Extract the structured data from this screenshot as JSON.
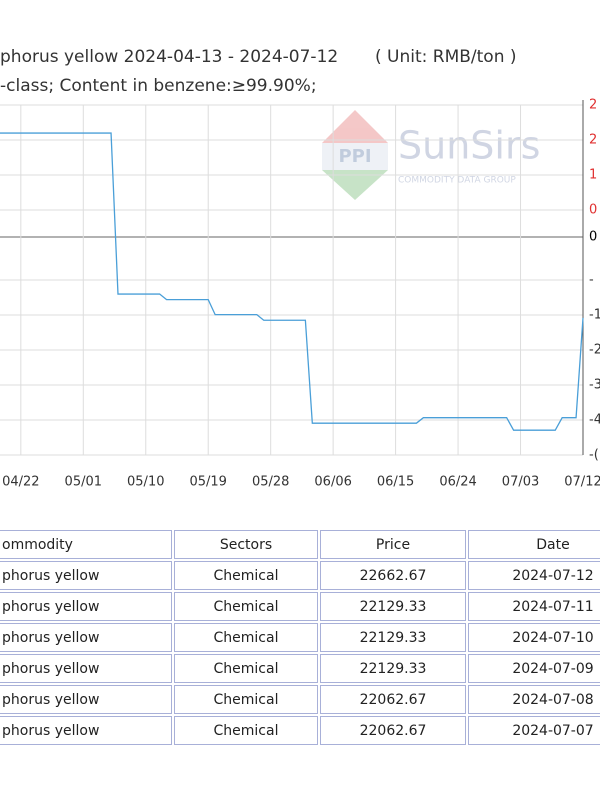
{
  "chart_data": {
    "type": "line",
    "title": "phorus yellow 2024-04-13 - 2024-07-12",
    "unit": "( Unit: RMB/ton )",
    "subtitle": "-class; Content in benzene:≥99.90%;",
    "watermark": {
      "brand": "SunSirs",
      "tagline": "COMMODITY DATA GROUP",
      "logo": "PPI"
    },
    "x": [
      "2024-04-19",
      "2024-05-05",
      "2024-05-06",
      "2024-05-12",
      "2024-05-13",
      "2024-05-19",
      "2024-05-20",
      "2024-05-26",
      "2024-05-27",
      "2024-06-02",
      "2024-06-03",
      "2024-06-18",
      "2024-06-19",
      "2024-07-01",
      "2024-07-02",
      "2024-07-08",
      "2024-07-09",
      "2024-07-11",
      "2024-07-12"
    ],
    "series": [
      {
        "name": "phorus yellow",
        "color": "#4a9fd8",
        "values": [
          23650,
          23650,
          22790,
          22790,
          22760,
          22760,
          22680,
          22680,
          22650,
          22650,
          22100,
          22100,
          22129.33,
          22129.33,
          22062.67,
          22062.67,
          22129.33,
          22129.33,
          22662.67
        ]
      }
    ],
    "xlim": [
      "2024-04-19",
      "2024-07-12"
    ],
    "xticks": [
      {
        "value": "2024-04-22",
        "label": "04/22"
      },
      {
        "value": "2024-05-01",
        "label": "05/01"
      },
      {
        "value": "2024-05-10",
        "label": "05/10"
      },
      {
        "value": "2024-05-19",
        "label": "05/19"
      },
      {
        "value": "2024-05-28",
        "label": "05/28"
      },
      {
        "value": "2024-06-06",
        "label": "06/06"
      },
      {
        "value": "2024-06-15",
        "label": "06/15"
      },
      {
        "value": "2024-06-24",
        "label": "06/24"
      },
      {
        "value": "2024-07-03",
        "label": "07/03"
      },
      {
        "value": "2024-07-12",
        "label": "07/12"
      }
    ],
    "ylim": [
      21930,
      23800
    ],
    "y2_labels": [
      {
        "label": "2",
        "color": "#e03030"
      },
      {
        "label": "2",
        "color": "#e03030"
      },
      {
        "label": "1",
        "color": "#e03030"
      },
      {
        "label": "0",
        "color": "#e03030"
      },
      {
        "label": "0",
        "color": "#000000"
      },
      {
        "label": "-",
        "color": "#333333"
      },
      {
        "label": "-1",
        "color": "#333333"
      },
      {
        "label": "-2",
        "color": "#333333"
      },
      {
        "label": "-3",
        "color": "#333333"
      },
      {
        "label": "-4",
        "color": "#333333"
      },
      {
        "label": "-(",
        "color": "#333333"
      }
    ],
    "grid": true
  },
  "table": {
    "header": [
      "ommodity",
      "Sectors",
      "Price",
      "Date"
    ],
    "rows": [
      [
        "phorus yellow",
        "Chemical",
        "22662.67",
        "2024-07-12"
      ],
      [
        "phorus yellow",
        "Chemical",
        "22129.33",
        "2024-07-11"
      ],
      [
        "phorus yellow",
        "Chemical",
        "22129.33",
        "2024-07-10"
      ],
      [
        "phorus yellow",
        "Chemical",
        "22129.33",
        "2024-07-09"
      ],
      [
        "phorus yellow",
        "Chemical",
        "22062.67",
        "2024-07-08"
      ],
      [
        "phorus yellow",
        "Chemical",
        "22062.67",
        "2024-07-07"
      ]
    ]
  }
}
